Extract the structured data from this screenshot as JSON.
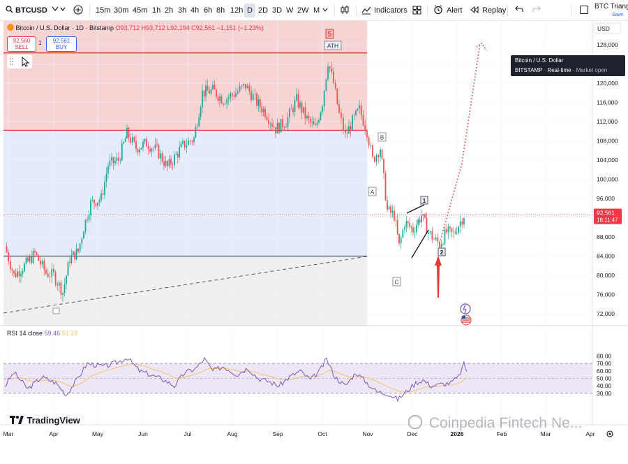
{
  "toolbar": {
    "symbol": "BTCUSD",
    "intervals": [
      "15m",
      "30m",
      "45m",
      "1h",
      "2h",
      "3h",
      "4h",
      "6h",
      "8h",
      "12h",
      "D",
      "2D",
      "3D",
      "W",
      "2W",
      "M"
    ],
    "selected_interval": "D",
    "indicators_label": "Indicators",
    "alert_label": "Alert",
    "replay_label": "Replay",
    "layout_title": "BTC Triangl",
    "save_label": "Save",
    "icons": [
      "add-icon",
      "candles-icon",
      "indicators-icon",
      "templates-icon",
      "alert-icon",
      "replay-icon",
      "undo-icon",
      "redo-icon",
      "checkbox-icon"
    ]
  },
  "legend": {
    "title": "Bitcoin / U.S. Dollar · 1D · Bitstamp",
    "o": "O93,712",
    "h": "H93,712",
    "l": "L92,194",
    "c": "C92,561",
    "chg": "−1,151 (−1.23%)"
  },
  "trade": {
    "sell_price": "92,560",
    "sell_label": "SELL",
    "qty": "1",
    "buy_price": "92,561",
    "buy_label": "BUY"
  },
  "tooltip": {
    "line1": "Bitcoin / U.S. Dollar",
    "line2a": "BITSTAMP",
    "line2b": "Real-time",
    "line2c": "Market open"
  },
  "currency": "USD",
  "price_label": {
    "value": "92,561",
    "countdown": "18:11:47"
  },
  "annotations": {
    "wave5": "5",
    "ath": "ATH",
    "A": "A",
    "B": "B",
    "C": "C",
    "w1": "1",
    "w2": "2"
  },
  "rsi": {
    "label": "RSI 14 close",
    "value": "59.46",
    "ma_value": "51.23",
    "ticks": [
      "80.00",
      "70.00",
      "60.00",
      "50.00",
      "40.00",
      "30.00"
    ]
  },
  "watermark": "Coinpedia Fintech Ne...",
  "branding": "TradingView",
  "chart_data": {
    "type": "candlestick",
    "title": "Bitcoin / U.S. Dollar · 1D · Bitstamp",
    "y_ticks": [
      128000,
      124000,
      120000,
      116000,
      112000,
      108000,
      104000,
      100000,
      96000,
      92000,
      88000,
      84000,
      80000,
      76000,
      72000
    ],
    "ylim": [
      70000,
      133000
    ],
    "x_tick_labels": [
      "Mar",
      "Apr",
      "May",
      "Jun",
      "Jul",
      "Aug",
      "Sep",
      "Oct",
      "Nov",
      "Dec",
      "2026",
      "Feb",
      "Mar",
      "Apr"
    ],
    "key_points": {
      "dates": [
        "Mar",
        "Apr",
        "May",
        "Jun",
        "Jul",
        "Aug",
        "Sep",
        "Oct",
        "Nov",
        "Dec",
        "2026"
      ],
      "close": [
        88000,
        77000,
        96000,
        107000,
        108000,
        118000,
        111000,
        123000,
        108000,
        91000,
        92561
      ]
    },
    "levels": {
      "ath_line": 126300,
      "resistance": 110200,
      "support": 84000
    },
    "projection_target": 128500,
    "rsi": {
      "overbought": 70,
      "mid": 50,
      "oversold": 30,
      "last": 59.46,
      "ma": 51.23
    }
  }
}
